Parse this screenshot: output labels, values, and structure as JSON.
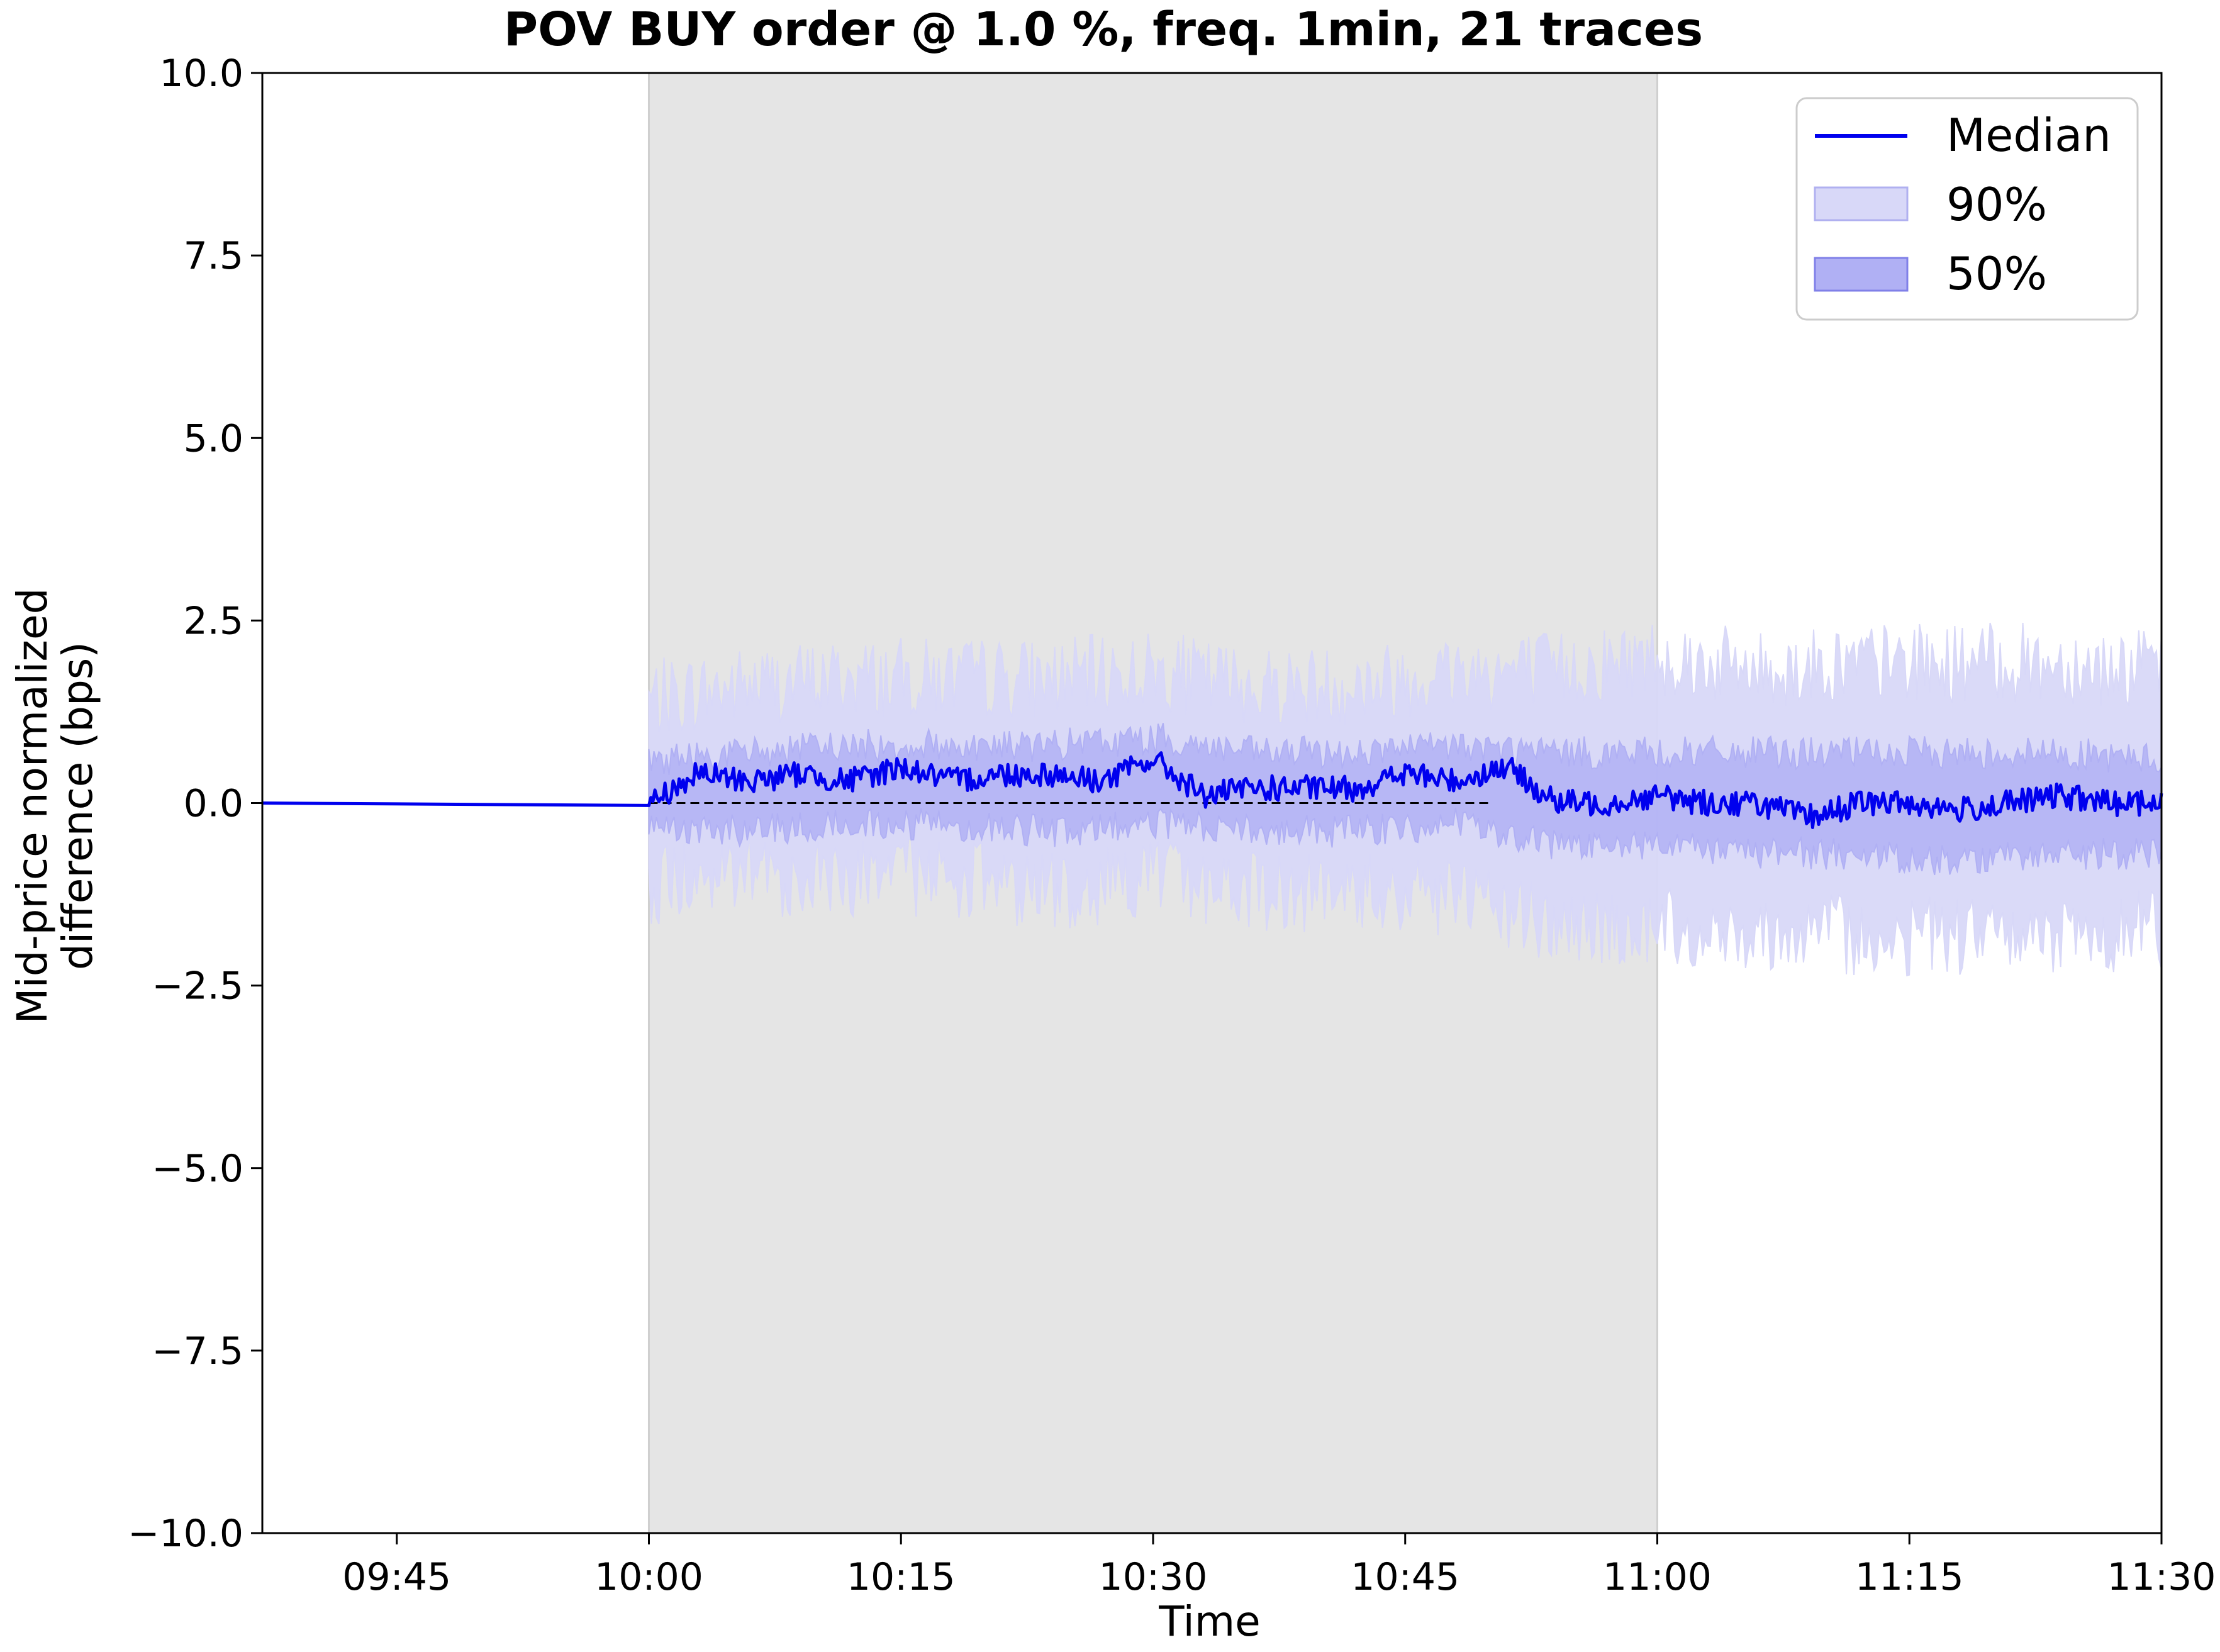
{
  "chart_data": {
    "type": "line",
    "title": "POV BUY order @ 1.0 %, freq. 1min, 21 traces",
    "xlabel": "Time",
    "ylabel_lines": [
      "Mid-price normalized",
      "difference (bps)"
    ],
    "x_range": [
      "09:37",
      "11:30"
    ],
    "ylim": [
      -10.0,
      10.0
    ],
    "x_ticks": [
      "09:45",
      "10:00",
      "10:15",
      "10:30",
      "10:45",
      "11:00",
      "11:15",
      "11:30"
    ],
    "y_ticks": [
      "10.0",
      "7.5",
      "5.0",
      "2.5",
      "0.0",
      "−2.5",
      "−5.0",
      "−7.5",
      "−10.0"
    ],
    "y_tick_values": [
      10.0,
      7.5,
      5.0,
      2.5,
      0.0,
      -2.5,
      -5.0,
      -7.5,
      -10.0
    ],
    "shaded_interval": [
      "10:00",
      "11:00"
    ],
    "reference_line": {
      "y": 0.0,
      "style": "dashed",
      "range": [
        "10:00",
        "10:50"
      ]
    },
    "grid": false,
    "legend": {
      "placement": "top-right",
      "entries": [
        {
          "label": "Median",
          "kind": "line",
          "color": "#0000ee"
        },
        {
          "label": "90%",
          "kind": "band",
          "color": "#d8d8f8"
        },
        {
          "label": "50%",
          "kind": "band",
          "color": "#b0b0f4"
        }
      ]
    },
    "series": [
      {
        "name": "Median",
        "color": "#0000ee",
        "x": [
          "09:37",
          "10:00",
          "10:03",
          "10:06",
          "10:09",
          "10:12",
          "10:15",
          "10:18",
          "10:21",
          "10:24",
          "10:27",
          "10:30",
          "10:33",
          "10:36",
          "10:39",
          "10:42",
          "10:45",
          "10:48",
          "10:51",
          "10:54",
          "10:57",
          "11:00",
          "11:03",
          "11:06",
          "11:09",
          "11:12",
          "11:15",
          "11:18",
          "11:21",
          "11:24",
          "11:27",
          "11:30"
        ],
        "y": [
          0.0,
          0.0,
          0.4,
          0.3,
          0.4,
          0.3,
          0.5,
          0.3,
          0.4,
          0.4,
          0.3,
          0.6,
          0.1,
          0.2,
          0.2,
          0.2,
          0.4,
          0.3,
          0.5,
          0.0,
          0.0,
          0.1,
          0.0,
          0.0,
          -0.2,
          0.0,
          0.0,
          -0.1,
          0.0,
          0.1,
          0.0,
          0.0
        ]
      },
      {
        "name": "50%",
        "color": "#b0b0f4",
        "x": [
          "10:00",
          "10:06",
          "10:12",
          "10:18",
          "10:24",
          "10:30",
          "10:36",
          "10:42",
          "10:48",
          "10:54",
          "11:00",
          "11:06",
          "11:12",
          "11:18",
          "11:24",
          "11:30"
        ],
        "upper": [
          0.5,
          0.6,
          0.7,
          0.7,
          0.7,
          0.8,
          0.6,
          0.6,
          0.7,
          0.6,
          0.6,
          0.6,
          0.6,
          0.6,
          0.6,
          0.5
        ],
        "lower": [
          -0.2,
          -0.3,
          -0.2,
          -0.2,
          -0.3,
          -0.2,
          -0.3,
          -0.3,
          -0.2,
          -0.5,
          -0.5,
          -0.6,
          -0.6,
          -0.7,
          -0.6,
          -0.6
        ]
      },
      {
        "name": "90%",
        "color": "#d8d8f8",
        "x": [
          "10:00",
          "10:06",
          "10:12",
          "10:18",
          "10:24",
          "10:30",
          "10:36",
          "10:42",
          "10:48",
          "10:54",
          "11:00",
          "11:06",
          "11:12",
          "11:18",
          "11:24",
          "11:30"
        ],
        "upper": [
          1.2,
          1.4,
          1.5,
          1.5,
          1.5,
          1.6,
          1.4,
          1.4,
          1.6,
          1.6,
          1.8,
          1.6,
          1.7,
          1.7,
          1.7,
          1.6
        ],
        "lower": [
          -0.9,
          -0.8,
          -0.8,
          -0.8,
          -1.0,
          -0.8,
          -1.0,
          -1.0,
          -1.1,
          -1.5,
          -1.5,
          -1.5,
          -1.6,
          -1.6,
          -1.6,
          -1.5
        ]
      }
    ]
  }
}
